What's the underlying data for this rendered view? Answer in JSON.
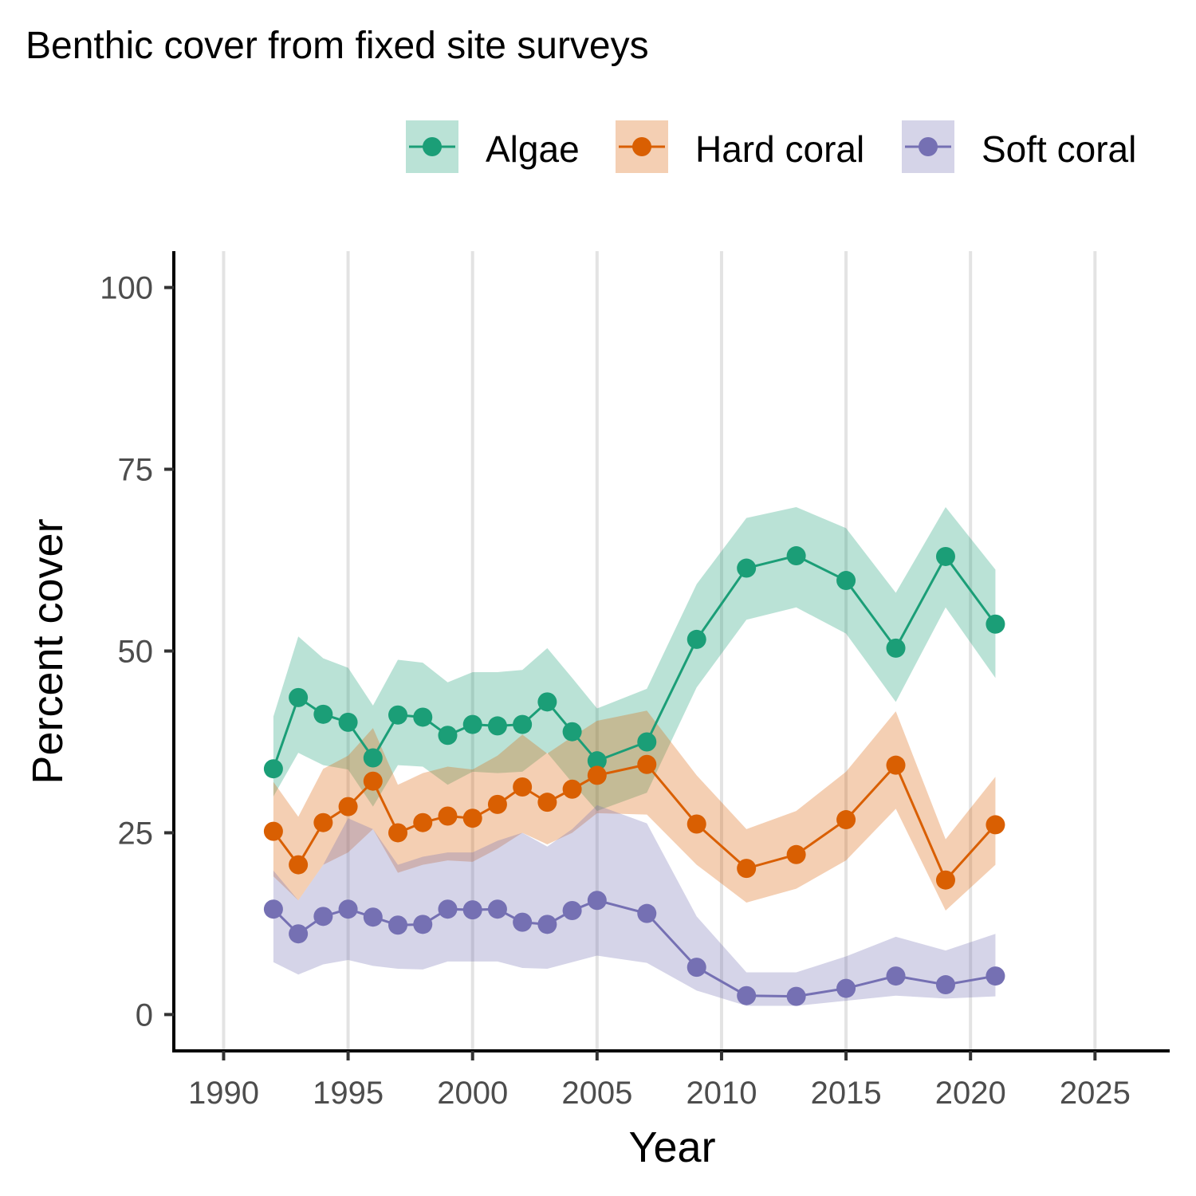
{
  "chart_data": {
    "type": "line",
    "title": "Benthic cover from fixed site surveys",
    "xlabel": "Year",
    "ylabel": "Percent cover",
    "xlim": [
      1988,
      2028
    ],
    "ylim": [
      -5,
      105
    ],
    "xticks": [
      1990,
      1995,
      2000,
      2005,
      2010,
      2015,
      2020,
      2025
    ],
    "yticks": [
      0,
      25,
      50,
      75,
      100
    ],
    "grid": "vertical major gridlines",
    "legend_position": "top-right",
    "x": [
      1992,
      1993,
      1994,
      1995,
      1996,
      1997,
      1998,
      1999,
      2000,
      2001,
      2002,
      2003,
      2004,
      2005,
      2007,
      2009,
      2011,
      2013,
      2015,
      2017,
      2019,
      2021
    ],
    "series": [
      {
        "name": "Algae",
        "color": "#1b9e77",
        "values": [
          33.8,
          43.6,
          41.3,
          40.2,
          35.3,
          41.2,
          40.9,
          38.4,
          39.9,
          39.7,
          39.9,
          43.0,
          38.9,
          34.9,
          37.5,
          51.6,
          61.4,
          63.1,
          59.7,
          50.4,
          63.0,
          53.7
        ],
        "upper": [
          41.0,
          52.0,
          49.0,
          47.7,
          42.5,
          48.8,
          48.4,
          45.7,
          47.1,
          47.1,
          47.4,
          50.4,
          46.3,
          42.1,
          44.8,
          59.2,
          68.3,
          69.8,
          66.9,
          58.0,
          69.8,
          61.2
        ],
        "lower": [
          30.0,
          36.0,
          34.3,
          33.7,
          28.6,
          34.3,
          34.1,
          31.6,
          33.4,
          33.2,
          33.4,
          36.0,
          31.9,
          28.0,
          30.5,
          45.0,
          54.3,
          56.0,
          52.4,
          43.0,
          56.0,
          46.3
        ]
      },
      {
        "name": "Hard coral",
        "color": "#d95f02",
        "values": [
          25.2,
          20.6,
          26.4,
          28.6,
          32.1,
          25.0,
          26.4,
          27.3,
          27.0,
          28.9,
          31.3,
          29.2,
          31.0,
          32.9,
          34.4,
          26.2,
          20.1,
          22.0,
          26.8,
          34.3,
          18.5,
          26.1
        ],
        "upper": [
          32.0,
          27.2,
          33.8,
          35.6,
          39.4,
          31.6,
          33.2,
          34.1,
          33.7,
          35.6,
          38.5,
          35.9,
          38.2,
          40.4,
          41.8,
          32.9,
          25.5,
          28.0,
          33.4,
          41.7,
          24.1,
          32.7
        ],
        "lower": [
          19.0,
          15.7,
          20.6,
          22.3,
          25.5,
          19.5,
          20.6,
          21.2,
          21.0,
          22.8,
          25.0,
          23.4,
          25.0,
          27.7,
          27.5,
          20.6,
          15.4,
          17.3,
          21.2,
          28.3,
          14.3,
          20.6
        ]
      },
      {
        "name": "Soft coral",
        "color": "#7570b3",
        "values": [
          14.5,
          11.1,
          13.5,
          14.5,
          13.4,
          12.3,
          12.4,
          14.5,
          14.4,
          14.5,
          12.7,
          12.4,
          14.3,
          15.7,
          13.9,
          6.5,
          2.6,
          2.5,
          3.6,
          5.3,
          4.1,
          5.3
        ],
        "upper": [
          19.8,
          15.7,
          20.6,
          27.0,
          25.5,
          20.6,
          21.7,
          22.3,
          22.3,
          23.9,
          25.0,
          23.1,
          25.5,
          28.8,
          26.3,
          13.5,
          5.8,
          5.8,
          8.0,
          10.7,
          8.8,
          11.1
        ],
        "lower": [
          7.2,
          5.5,
          6.9,
          7.5,
          6.7,
          6.3,
          6.2,
          7.3,
          7.3,
          7.3,
          6.4,
          6.3,
          7.2,
          8.1,
          7.1,
          3.3,
          1.2,
          1.2,
          1.9,
          2.6,
          2.2,
          2.5
        ]
      }
    ]
  }
}
